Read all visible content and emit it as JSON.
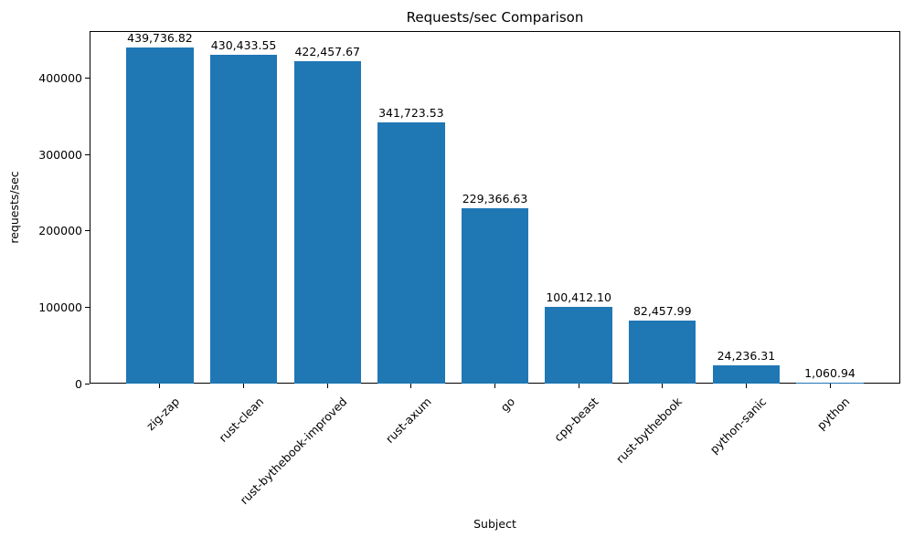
{
  "chart_data": {
    "type": "bar",
    "title": "Requests/sec Comparison",
    "xlabel": "Subject",
    "ylabel": "requests/sec",
    "categories": [
      "zig-zap",
      "rust-clean",
      "rust-bythebook-improved",
      "rust-axum",
      "go",
      "cpp-beast",
      "rust-bythebook",
      "python-sanic",
      "python"
    ],
    "values": [
      439736.82,
      430433.55,
      422457.67,
      341723.53,
      229366.63,
      100412.1,
      82457.99,
      24236.31,
      1060.94
    ],
    "bar_labels": [
      "439,736.82",
      "430,433.55",
      "422,457.67",
      "341,723.53",
      "229,366.63",
      "100,412.10",
      "82,457.99",
      "24,236.31",
      "1,060.94"
    ],
    "yticks": [
      0,
      100000,
      200000,
      300000,
      400000
    ],
    "ytick_labels": [
      "0",
      "100000",
      "200000",
      "300000",
      "400000"
    ],
    "ylim": [
      0,
      461724
    ],
    "xlim": [
      -0.84,
      8.84
    ],
    "bar_width": 0.8,
    "bar_color": "#1f77b4",
    "grid": false,
    "xtick_rotation_deg": 45,
    "legend": "none"
  }
}
